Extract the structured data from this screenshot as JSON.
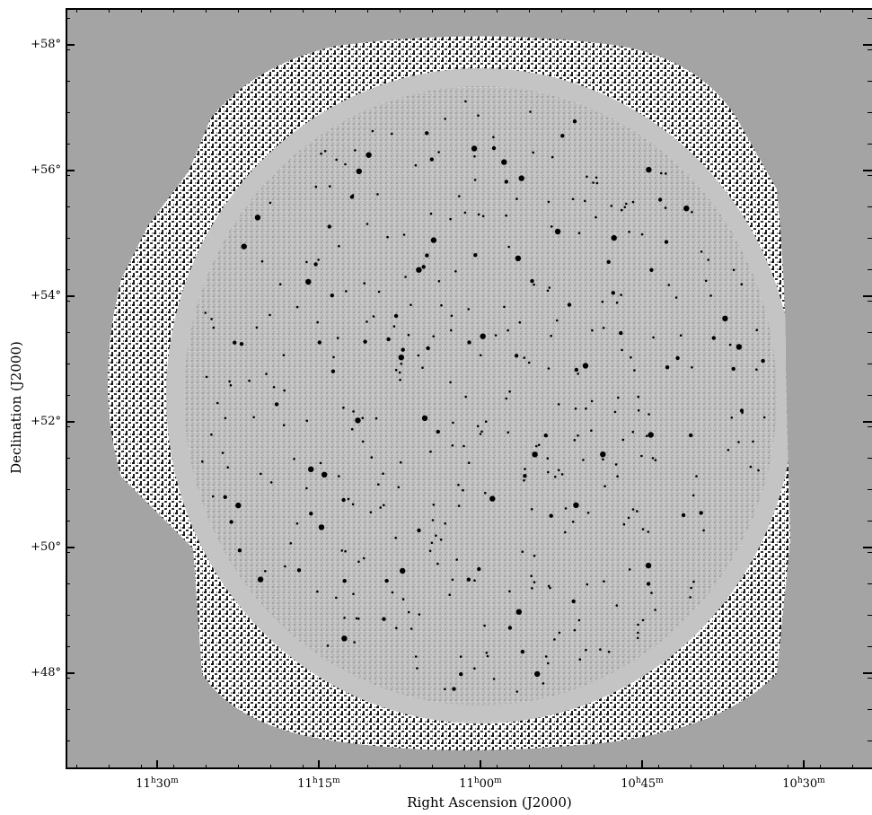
{
  "axes": {
    "xlabel": "Right Ascension (J2000)",
    "ylabel": "Declination (J2000)",
    "x_ticks": [
      {
        "h": "11",
        "m": "30"
      },
      {
        "h": "11",
        "m": "15"
      },
      {
        "h": "11",
        "m": "00"
      },
      {
        "h": "10",
        "m": "45"
      },
      {
        "h": "10",
        "m": "30"
      }
    ],
    "y_ticks": [
      "+58°",
      "+56°",
      "+54°",
      "+52°",
      "+50°",
      "+48°"
    ]
  },
  "image": {
    "description_tag": "radio-continuum-mosaic",
    "background_color": "#a4a4a4",
    "source_color": "#000000"
  }
}
